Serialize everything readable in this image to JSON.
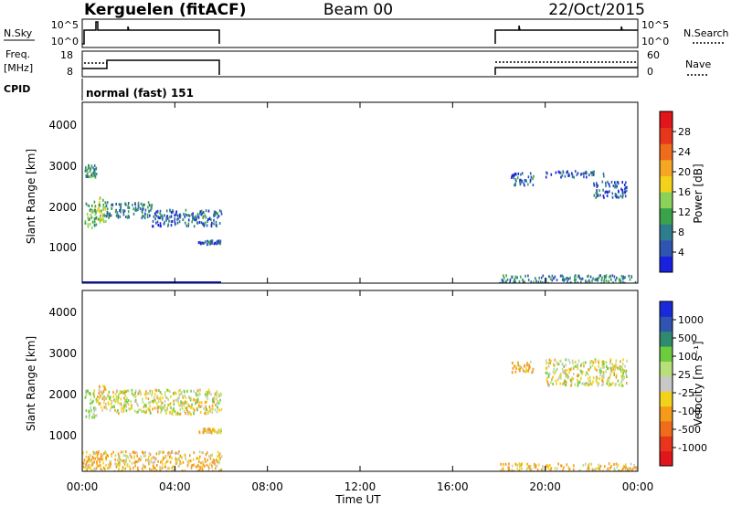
{
  "header": {
    "station": "Kerguelen (fitACF)",
    "beam": "Beam 00",
    "date": "22/Oct/2015"
  },
  "panels": {
    "nsky": {
      "left_label": "N.Sky",
      "right_label": "N.Search",
      "ticks": [
        "10^5",
        "10^0"
      ],
      "right_ticks": [
        "10^5",
        "10^0"
      ]
    },
    "freq": {
      "left_label_1": "Freq.",
      "left_label_2": "[MHz]",
      "ticks": [
        "18",
        "8"
      ],
      "right_label": "Nave",
      "right_ticks": [
        "60",
        "0"
      ]
    },
    "cpid": {
      "label": "CPID",
      "value": "normal (fast) 151"
    }
  },
  "time_axis": {
    "label": "Time UT",
    "ticks": [
      "00:00",
      "04:00",
      "08:00",
      "12:00",
      "16:00",
      "20:00",
      "00:00"
    ]
  },
  "power_panel": {
    "ylabel": "Slant Range [km]",
    "yticks": [
      "4000",
      "3000",
      "2000",
      "1000"
    ],
    "colorbar_label": "Power [dB]",
    "colorbar_ticks": [
      "28",
      "24",
      "20",
      "16",
      "12",
      "8",
      "4"
    ],
    "colors": [
      "#1a20e0",
      "#2f55b0",
      "#2e7d8e",
      "#3aa34a",
      "#8bd25a",
      "#f2d21b",
      "#f5a623",
      "#ef6c1a",
      "#e8361c",
      "#e0161b"
    ]
  },
  "velocity_panel": {
    "ylabel": "Slant Range [km]",
    "yticks": [
      "4000",
      "3000",
      "2000",
      "1000"
    ],
    "colorbar_label": "Velocity [m s⁻¹]",
    "colorbar_ticks": [
      "1000",
      "500",
      "100",
      "25",
      "-25",
      "-100",
      "-500",
      "-1000"
    ],
    "colors": [
      "#1a2ad8",
      "#2f55b0",
      "#2f8a6e",
      "#6ccc3d",
      "#b8e07a",
      "#c8c8c8",
      "#f2d21b",
      "#f59a1b",
      "#ef6c1a",
      "#e8361c",
      "#e0161b"
    ]
  },
  "chart_data": [
    {
      "type": "heatmap",
      "title": "Power",
      "xlabel": "Time UT",
      "ylabel": "Slant Range [km]",
      "xlim": [
        0,
        24
      ],
      "ylim": [
        180,
        4600
      ],
      "colorbar": {
        "label": "Power [dB]",
        "range": [
          0,
          32
        ]
      },
      "blocks": [
        {
          "t": [
            0.1,
            0.6
          ],
          "r": [
            1500,
            2200
          ],
          "power": 12
        },
        {
          "t": [
            0.6,
            1.0
          ],
          "r": [
            1700,
            2300
          ],
          "power": 14
        },
        {
          "t": [
            1.0,
            3.0
          ],
          "r": [
            1800,
            2200
          ],
          "power": 8
        },
        {
          "t": [
            3.0,
            6.0
          ],
          "r": [
            1600,
            2000
          ],
          "power": 6
        },
        {
          "t": [
            5.0,
            6.0
          ],
          "r": [
            1150,
            1250
          ],
          "power": 6
        },
        {
          "t": [
            0.1,
            0.6
          ],
          "r": [
            2800,
            3100
          ],
          "power": 10
        },
        {
          "t": [
            18.5,
            19.5
          ],
          "r": [
            2600,
            2900
          ],
          "power": 6
        },
        {
          "t": [
            20.0,
            22.5
          ],
          "r": [
            2800,
            2950
          ],
          "power": 5
        },
        {
          "t": [
            22.0,
            23.5
          ],
          "r": [
            2300,
            2700
          ],
          "power": 6
        },
        {
          "t": [
            18.0,
            24.0
          ],
          "r": [
            180,
            400
          ],
          "power": 8
        }
      ]
    },
    {
      "type": "heatmap",
      "title": "Velocity",
      "xlabel": "Time UT",
      "ylabel": "Slant Range [km]",
      "xlim": [
        0,
        24
      ],
      "ylim": [
        180,
        4600
      ],
      "colorbar": {
        "label": "Velocity [m s⁻¹]",
        "range": [
          -1000,
          1000
        ]
      },
      "blocks": [
        {
          "t": [
            0.1,
            0.6
          ],
          "r": [
            1500,
            2200
          ],
          "velocity": 100
        },
        {
          "t": [
            0.6,
            1.0
          ],
          "r": [
            1700,
            2300
          ],
          "velocity": -100
        },
        {
          "t": [
            1.0,
            6.0
          ],
          "r": [
            1600,
            2200
          ],
          "velocity": 0
        },
        {
          "t": [
            5.0,
            6.0
          ],
          "r": [
            1150,
            1250
          ],
          "velocity": -100
        },
        {
          "t": [
            18.5,
            19.5
          ],
          "r": [
            2600,
            2900
          ],
          "velocity": -100
        },
        {
          "t": [
            20.0,
            23.5
          ],
          "r": [
            2300,
            2950
          ],
          "velocity": 0
        },
        {
          "t": [
            0.0,
            6.0
          ],
          "r": [
            180,
            700
          ],
          "velocity": -100
        },
        {
          "t": [
            18.0,
            24.0
          ],
          "r": [
            180,
            400
          ],
          "velocity": -100
        }
      ]
    }
  ]
}
